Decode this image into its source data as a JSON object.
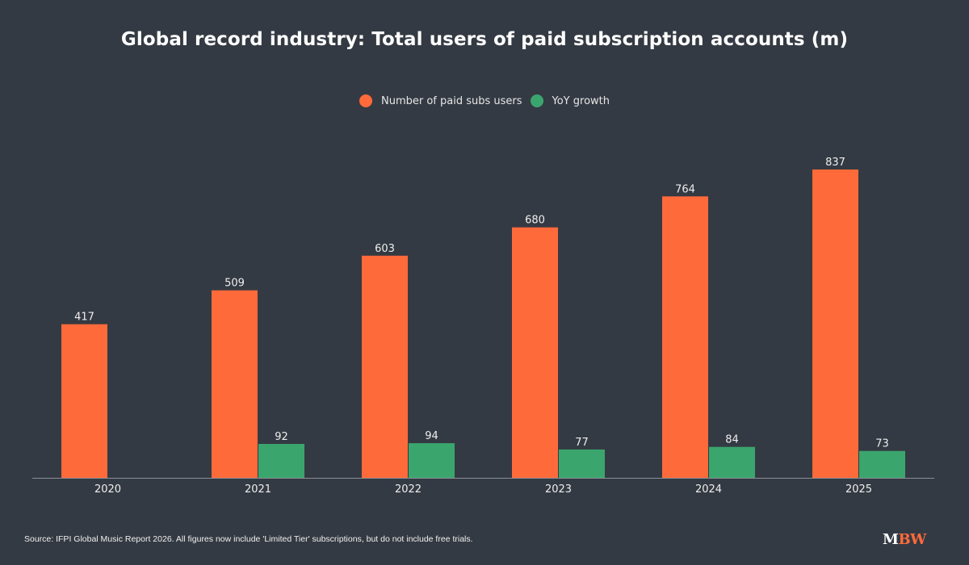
{
  "colors": {
    "background": "#343a43",
    "paid_subs": "#ff6a3a",
    "yoy_growth": "#3aa66e",
    "axis": "#8a8f96"
  },
  "chart_data": {
    "type": "bar",
    "title": "Global record industry: Total users of paid subscription accounts (m)",
    "xlabel": "",
    "ylabel": "",
    "categories": [
      "2020",
      "2021",
      "2022",
      "2023",
      "2024",
      "2025"
    ],
    "series": [
      {
        "name": "Number of paid subs users",
        "color": "#ff6a3a",
        "values": [
          417,
          509,
          603,
          680,
          764,
          837
        ]
      },
      {
        "name": "YoY growth",
        "color": "#3aa66e",
        "values": [
          null,
          92,
          94,
          77,
          84,
          73
        ]
      }
    ],
    "ylim": [
      0,
      840
    ],
    "grid": false,
    "legend_position": "top-center",
    "data_labels": true
  },
  "footer": {
    "source": "Source: IFPI Global Music Report 2026. All figures now include 'Limited Tier' subscriptions, but do not include free trials.",
    "logo_m": "M",
    "logo_bw": "BW"
  }
}
